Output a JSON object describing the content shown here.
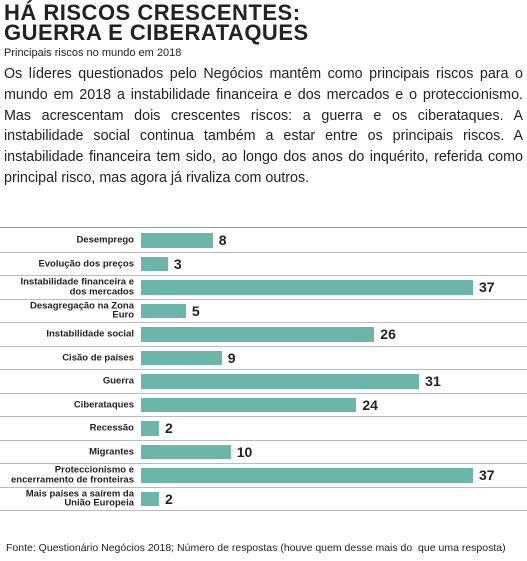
{
  "chart_data": {
    "type": "bar",
    "orientation": "horizontal",
    "title": "HÁ RISCOS CRESCENTES: GUERRA E CIBERATAQUES",
    "subtitle": "Principais riscos no mundo em 2018",
    "description": "Os líderes questionados pelo Negócios mantêm como principais riscos para o mundo em 2018 a instabilidade financeira e dos mercados e o proteccionismo. Mas acrescentam dois crescentes riscos: a guerra e os ciberataques. A instabilidade social continua também a estar entre os principais riscos. A instabilidade financeira tem sido, ao longo dos anos do inquérito, referida como principal risco, mas agora já rivaliza com outros.",
    "categories": [
      "Desemprego",
      "Evolução dos preços",
      "Instabilidade financeira e dos mercados",
      "Desagregação na Zona Euro",
      "Instabilidade social",
      "Cisão de países",
      "Guerra",
      "Ciberataques",
      "Recessão",
      "Migrantes",
      "Proteccionismo e encerramento de fronteiras",
      "Mais países a saírem da União Europeia"
    ],
    "values": [
      8,
      3,
      37,
      5,
      26,
      9,
      31,
      24,
      2,
      10,
      37,
      2
    ],
    "color": "#6cb5ab",
    "source": "Fonte: Questionário Negócios 2018; Número de respostas (houve quem desse mais do  que uma resposta)"
  }
}
